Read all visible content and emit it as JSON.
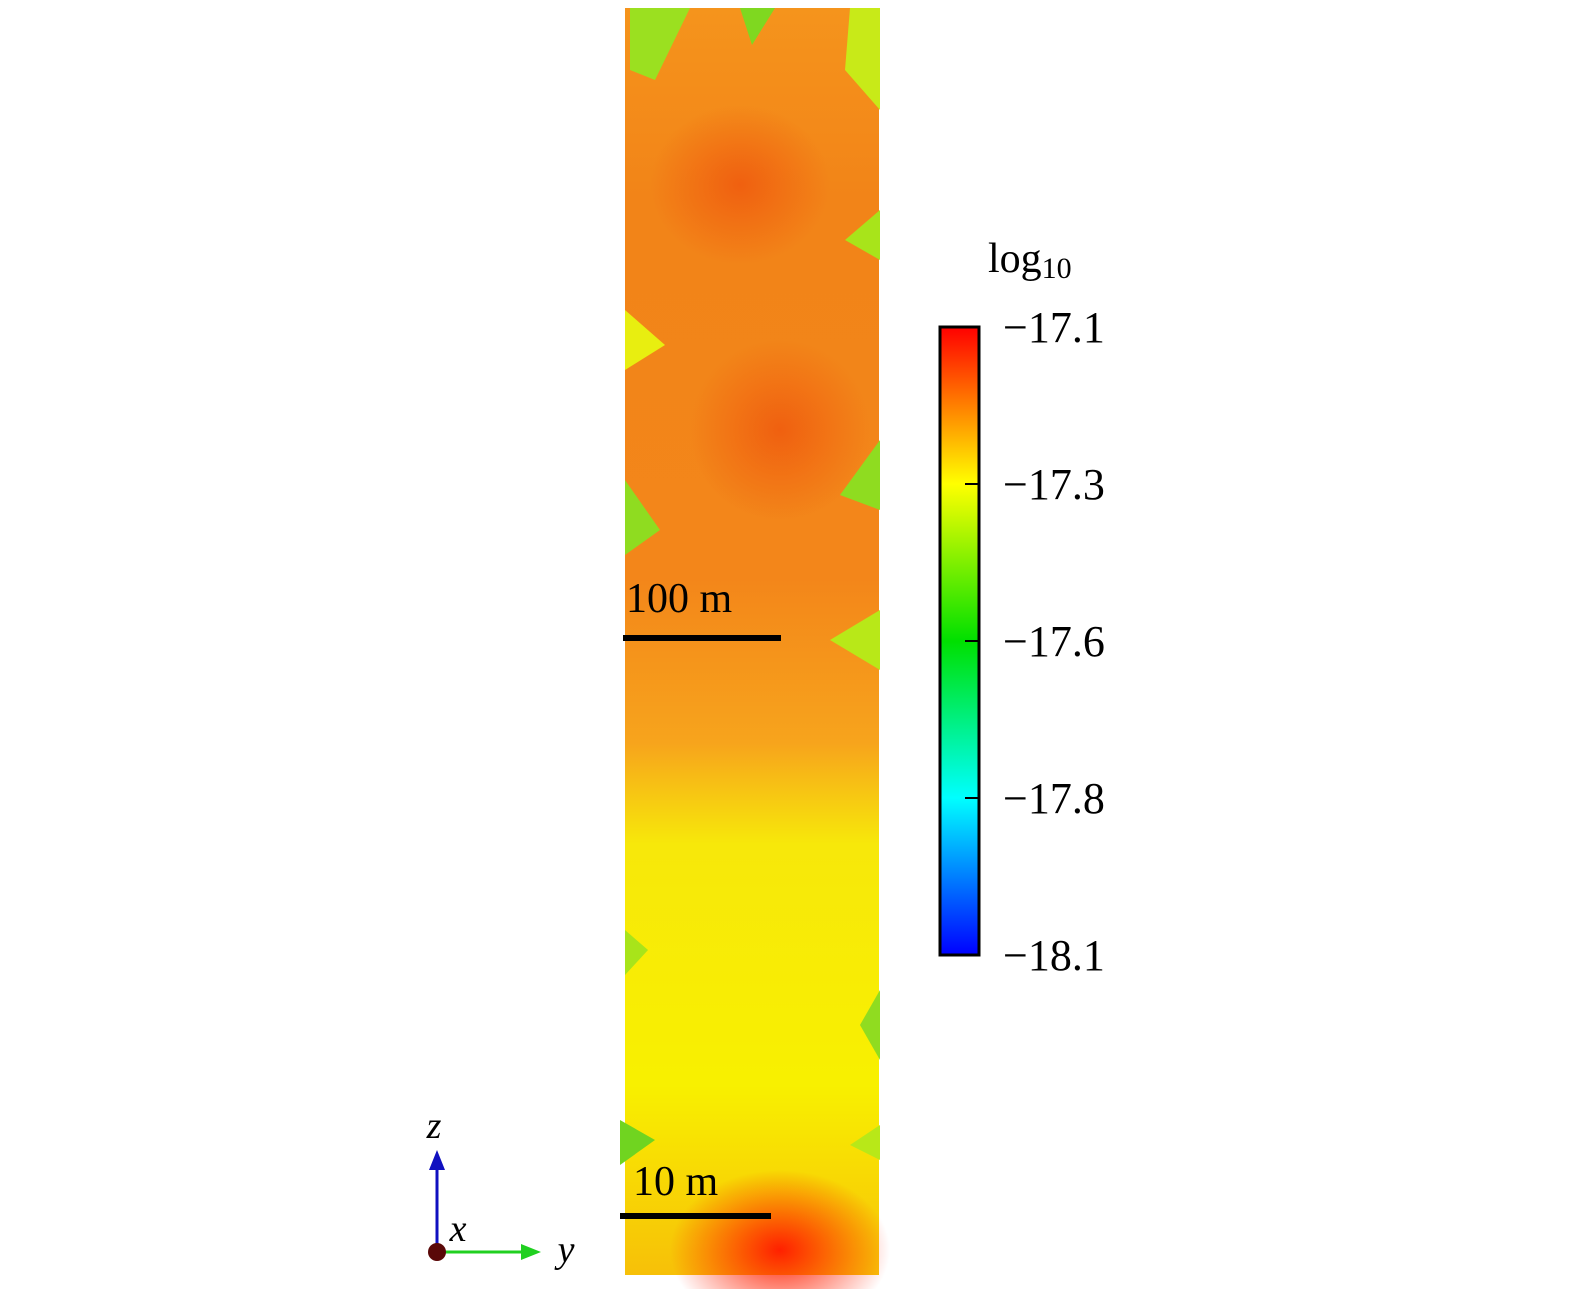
{
  "colorbar": {
    "title": "log",
    "title_subscript": "10",
    "lim": [
      -18.1,
      -17.1
    ],
    "ticks": [
      {
        "value": -17.1,
        "label": "−17.1"
      },
      {
        "value": -17.35,
        "label": "−17.3"
      },
      {
        "value": -17.6,
        "label": "−17.6"
      },
      {
        "value": -17.85,
        "label": "−17.8"
      },
      {
        "value": -18.1,
        "label": "−18.1"
      }
    ],
    "colors": [
      "#0000ff",
      "#00ffff",
      "#00e000",
      "#ffff00",
      "#ff0000"
    ]
  },
  "scale_bars": [
    {
      "label": "100 m"
    },
    {
      "label": "10 m"
    }
  ],
  "axes": {
    "z": "z",
    "x": "x",
    "y": "y"
  }
}
